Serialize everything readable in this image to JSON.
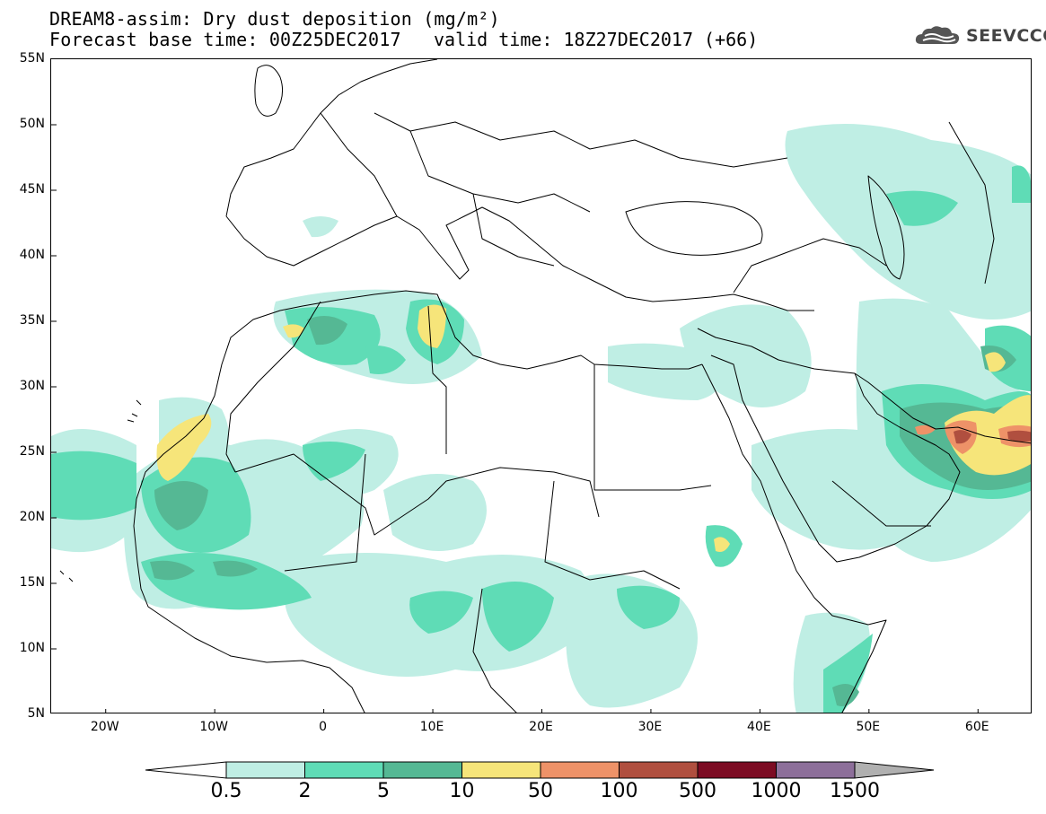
{
  "header": {
    "title_line1": "DREAM8-assim: Dry dust deposition (mg/m²)",
    "title_line2": "Forecast base time: 00Z25DEC2017",
    "valid_time": "valid time: 18Z27DEC2017 (+66)",
    "logo_text": "SEEVCCC",
    "logo_icon": "cloud-icon"
  },
  "axes": {
    "lat_labels": [
      "55N",
      "50N",
      "45N",
      "40N",
      "35N",
      "30N",
      "25N",
      "20N",
      "15N",
      "10N",
      "5N"
    ],
    "lon_labels": [
      "20W",
      "10W",
      "0",
      "10E",
      "20E",
      "30E",
      "40E",
      "50E",
      "60E"
    ],
    "lat_range": [
      5,
      55
    ],
    "lon_range": [
      -25,
      65
    ]
  },
  "colorbar": {
    "labels": [
      "0.5",
      "2",
      "5",
      "10",
      "50",
      "100",
      "500",
      "1000",
      "1500"
    ],
    "colors": [
      "#bfeee4",
      "#5fdcb6",
      "#55b894",
      "#f6e57a",
      "#ee9268",
      "#b04f3f",
      "#7c0b23",
      "#8d6f9a",
      "#b0b0b0"
    ]
  }
}
